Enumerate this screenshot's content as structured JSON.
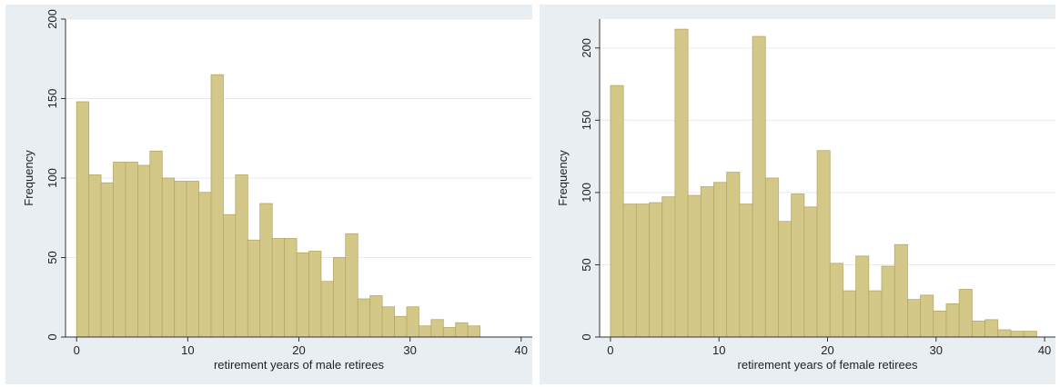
{
  "style": {
    "panel_bg": "#e9eef2",
    "plot_bg": "#ffffff",
    "bar_fill": "#d4c889",
    "bar_stroke": "#b5a865",
    "grid": "#eaeaea",
    "axis": "#333333"
  },
  "chart_data": [
    {
      "type": "bar",
      "subtype": "histogram",
      "xlabel": "retirement years of male retirees",
      "ylabel": "Frequency",
      "xlim": [
        -1,
        41
      ],
      "ylim": [
        0,
        200
      ],
      "xticks": [
        0,
        10,
        20,
        30,
        40
      ],
      "yticks": [
        0,
        50,
        100,
        150,
        200
      ],
      "grid": true,
      "bin_width": 1.1,
      "bin_start": 0,
      "values": [
        148,
        102,
        97,
        110,
        110,
        108,
        117,
        100,
        98,
        98,
        91,
        165,
        77,
        102,
        61,
        84,
        62,
        62,
        53,
        54,
        35,
        50,
        65,
        24,
        26,
        19,
        13,
        19,
        7,
        11,
        6,
        9,
        7
      ]
    },
    {
      "type": "bar",
      "subtype": "histogram",
      "xlabel": "retirement years of female retirees",
      "ylabel": "Frequency",
      "xlim": [
        -1,
        41
      ],
      "ylim": [
        0,
        220
      ],
      "xticks": [
        0,
        10,
        20,
        30,
        40
      ],
      "yticks": [
        0,
        50,
        100,
        150,
        200
      ],
      "grid": true,
      "bin_width": 1.19,
      "bin_start": 0,
      "values": [
        174,
        92,
        92,
        93,
        97,
        213,
        98,
        104,
        107,
        114,
        92,
        208,
        110,
        80,
        99,
        90,
        129,
        51,
        32,
        56,
        32,
        49,
        64,
        26,
        29,
        18,
        23,
        33,
        11,
        12,
        5,
        4,
        4
      ]
    }
  ]
}
